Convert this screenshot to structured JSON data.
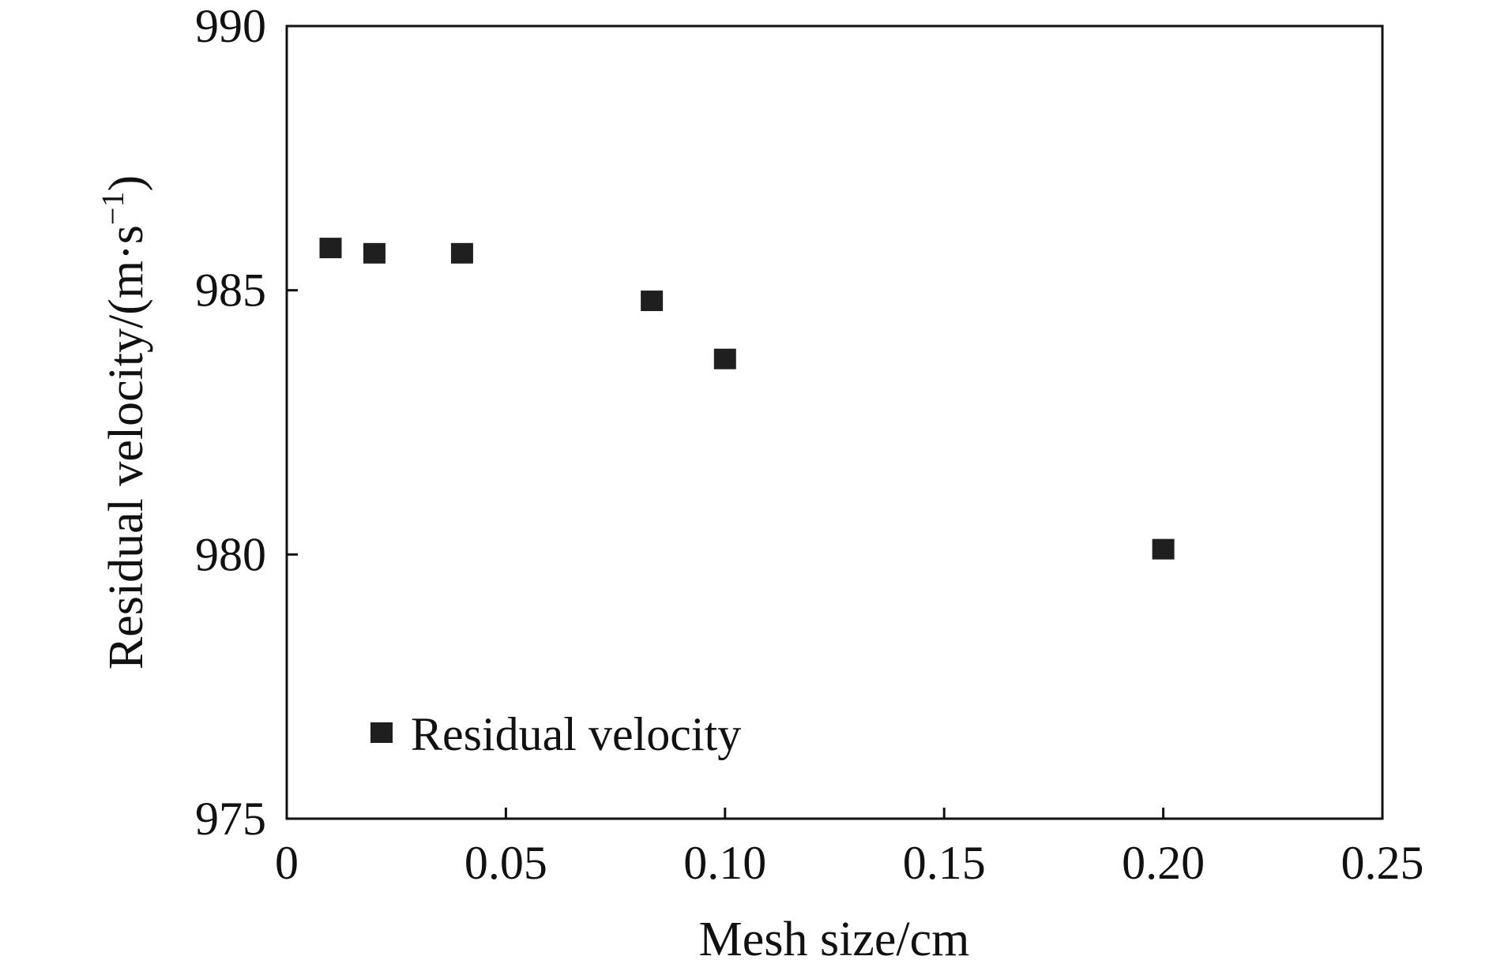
{
  "chart_data": {
    "type": "scatter",
    "xlabel": "Mesh size/cm",
    "ylabel": "Residual velocity/(m·s",
    "ylabel_unit_sup": "−1",
    "ylabel_close": ")",
    "xlim": [
      0,
      0.25
    ],
    "ylim": [
      975,
      990
    ],
    "xticks": [
      0,
      0.05,
      0.1,
      0.15,
      0.2,
      0.25
    ],
    "xtick_labels": [
      "0",
      "0.05",
      "0.10",
      "0.15",
      "0.20",
      "0.25"
    ],
    "yticks": [
      975,
      980,
      985,
      990
    ],
    "ytick_labels": [
      "975",
      "980",
      "985",
      "990"
    ],
    "grid": false,
    "legend": "bottom-left",
    "colors": {
      "marker": "#1f1f1f",
      "axis": "#111111"
    },
    "series": [
      {
        "name": "Residual velocity",
        "marker": "square",
        "points": [
          {
            "x": 0.01,
            "y": 985.8
          },
          {
            "x": 0.02,
            "y": 985.7
          },
          {
            "x": 0.04,
            "y": 985.7
          },
          {
            "x": 0.0833,
            "y": 984.8
          },
          {
            "x": 0.1,
            "y": 983.7
          },
          {
            "x": 0.2,
            "y": 980.1
          }
        ]
      }
    ]
  }
}
